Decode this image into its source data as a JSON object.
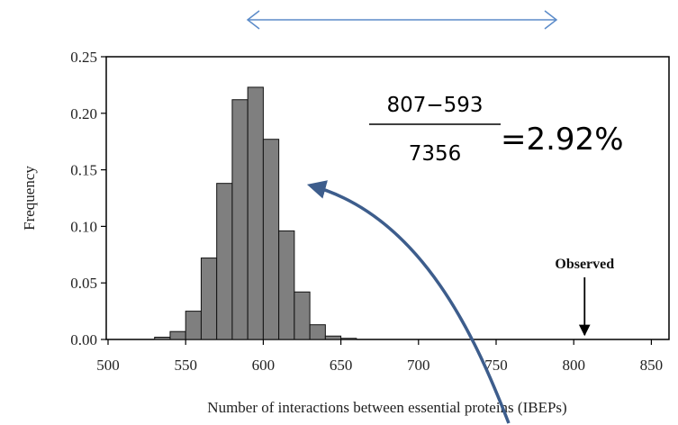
{
  "chart_data": {
    "type": "bar",
    "title": "",
    "xlabel": "Number of interactions between essential proteins (IBEPs)",
    "ylabel": "Frequency",
    "xlim": [
      500,
      850
    ],
    "ylim": [
      0,
      0.25
    ],
    "x_ticks": [
      "500",
      "550",
      "600",
      "650",
      "700",
      "750",
      "800",
      "850"
    ],
    "y_ticks": [
      "0.00",
      "0.05",
      "0.10",
      "0.15",
      "0.20",
      "0.25"
    ],
    "bin_width": 10,
    "bins": [
      {
        "start": 530,
        "value": 0.002
      },
      {
        "start": 540,
        "value": 0.007
      },
      {
        "start": 550,
        "value": 0.025
      },
      {
        "start": 560,
        "value": 0.072
      },
      {
        "start": 570,
        "value": 0.138
      },
      {
        "start": 580,
        "value": 0.212
      },
      {
        "start": 590,
        "value": 0.223
      },
      {
        "start": 600,
        "value": 0.177
      },
      {
        "start": 610,
        "value": 0.096
      },
      {
        "start": 620,
        "value": 0.042
      },
      {
        "start": 630,
        "value": 0.013
      },
      {
        "start": 640,
        "value": 0.003
      },
      {
        "start": 650,
        "value": 0.001
      }
    ],
    "annotation": {
      "label": "Observed",
      "x": 807
    },
    "grid": false,
    "bar_color": "#7f7f7f",
    "arrow_color": "#3d5d8c",
    "double_arrow_color": "#5b8bc9"
  },
  "formula": {
    "numerator": "807−593",
    "denominator": "7356",
    "result": "=2.92%"
  }
}
